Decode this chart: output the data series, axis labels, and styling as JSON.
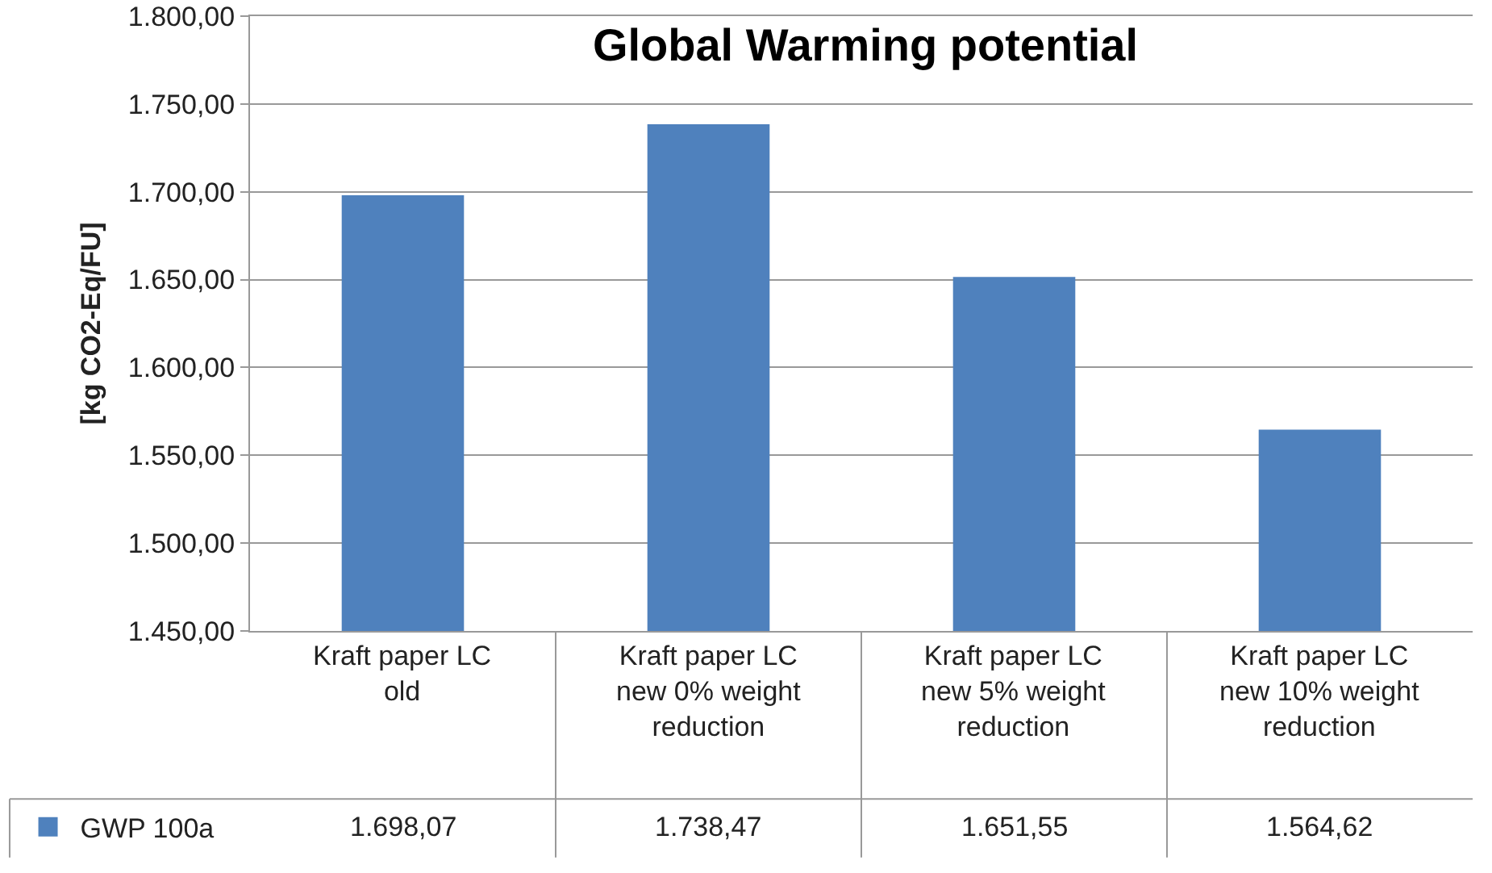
{
  "chart_data": {
    "type": "bar",
    "title": "Global Warming potential",
    "ylabel": "[kg CO2-Eq/FU]",
    "categories": [
      "Kraft paper LC old",
      "Kraft paper LC new 0% weight reduction",
      "Kraft paper LC new 5% weight reduction",
      "Kraft paper LC new 10% weight reduction"
    ],
    "series": [
      {
        "name": "GWP 100a",
        "color": "#4f81bd",
        "values": [
          1698.07,
          1738.47,
          1651.55,
          1564.62
        ],
        "value_labels": [
          "1.698,07",
          "1.738,47",
          "1.651,55",
          "1.564,62"
        ]
      }
    ],
    "ylim": [
      1450,
      1800
    ],
    "yticks": [
      {
        "value": 1450,
        "label": "1.450,00"
      },
      {
        "value": 1500,
        "label": "1.500,00"
      },
      {
        "value": 1550,
        "label": "1.550,00"
      },
      {
        "value": 1600,
        "label": "1.600,00"
      },
      {
        "value": 1650,
        "label": "1.650,00"
      },
      {
        "value": 1700,
        "label": "1.700,00"
      },
      {
        "value": 1750,
        "label": "1.750,00"
      },
      {
        "value": 1800,
        "label": "1.800,00"
      }
    ],
    "grid": "y",
    "legend": "bottom left"
  }
}
